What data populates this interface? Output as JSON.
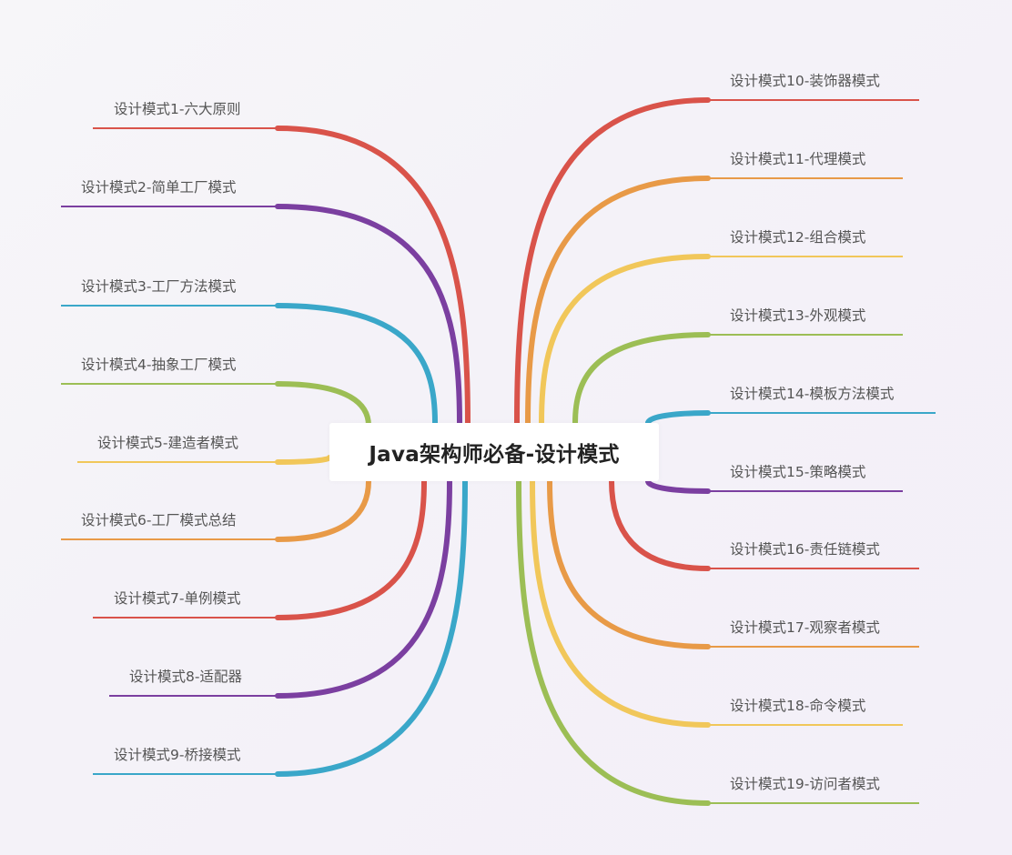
{
  "center": {
    "title": "Java架构师必备-设计模式"
  },
  "branches_left": [
    {
      "label": "设计模式1-六大原则",
      "color": "#d9534a"
    },
    {
      "label": "设计模式2-简单工厂模式",
      "color": "#7b3fa0"
    },
    {
      "label": "设计模式3-工厂方法模式",
      "color": "#3aa7c9"
    },
    {
      "label": "设计模式4-抽象工厂模式",
      "color": "#9cbe55"
    },
    {
      "label": "设计模式5-建造者模式",
      "color": "#f1c75a"
    },
    {
      "label": "设计模式6-工厂模式总结",
      "color": "#e89a47"
    },
    {
      "label": "设计模式7-单例模式",
      "color": "#d9534a"
    },
    {
      "label": "设计模式8-适配器",
      "color": "#7b3fa0"
    },
    {
      "label": "设计模式9-桥接模式",
      "color": "#3aa7c9"
    }
  ],
  "branches_right": [
    {
      "label": "设计模式10-装饰器模式",
      "color": "#d9534a"
    },
    {
      "label": "设计模式11-代理模式",
      "color": "#e89a47"
    },
    {
      "label": "设计模式12-组合模式",
      "color": "#f1c75a"
    },
    {
      "label": "设计模式13-外观模式",
      "color": "#9cbe55"
    },
    {
      "label": "设计模式14-模板方法模式",
      "color": "#3aa7c9"
    },
    {
      "label": "设计模式15-策略模式",
      "color": "#7b3fa0"
    },
    {
      "label": "设计模式16-责任链模式",
      "color": "#d9534a"
    },
    {
      "label": "设计模式17-观察者模式",
      "color": "#e89a47"
    },
    {
      "label": "设计模式18-命令模式",
      "color": "#f1c75a"
    },
    {
      "label": "设计模式19-访问者模式",
      "color": "#9cbe55"
    }
  ]
}
